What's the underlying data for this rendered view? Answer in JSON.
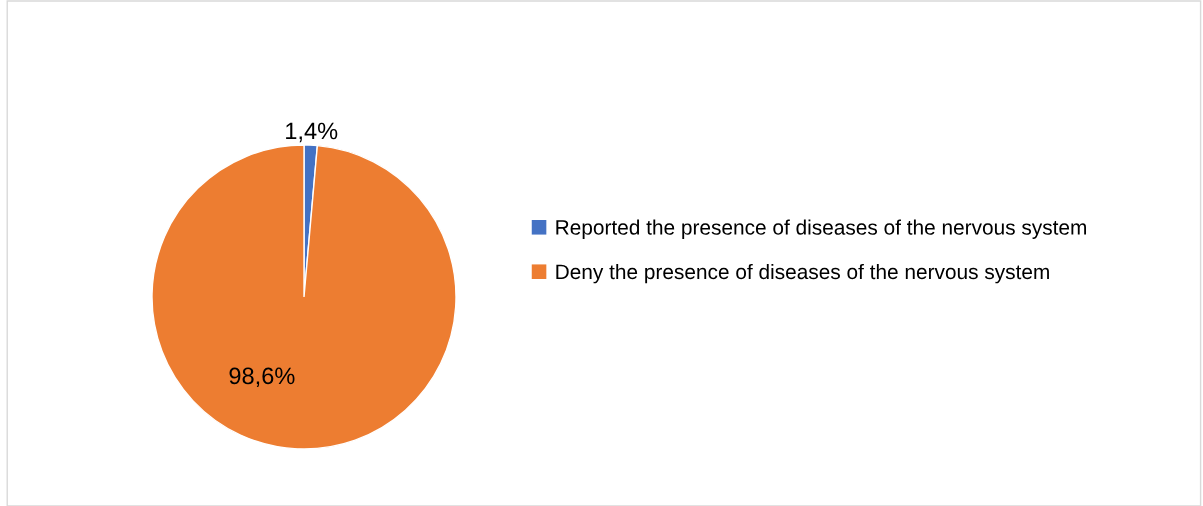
{
  "chart_data": {
    "type": "pie",
    "categories": [
      "Reported the presence of diseases of the nervous system",
      "Deny the presence of diseases of the nervous system"
    ],
    "values": [
      1.4,
      98.6
    ],
    "colors": [
      "#4472c4",
      "#ed7d31"
    ],
    "value_labels": [
      "1,4%",
      "98,6%"
    ],
    "legend": "right"
  }
}
